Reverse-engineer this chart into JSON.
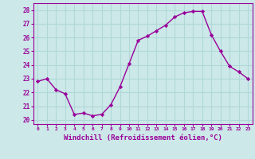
{
  "x": [
    0,
    1,
    2,
    3,
    4,
    5,
    6,
    7,
    8,
    9,
    10,
    11,
    12,
    13,
    14,
    15,
    16,
    17,
    18,
    19,
    20,
    21,
    22,
    23
  ],
  "y": [
    22.8,
    23.0,
    22.2,
    21.9,
    20.4,
    20.5,
    20.3,
    20.4,
    21.1,
    22.4,
    24.1,
    25.8,
    26.1,
    26.5,
    26.9,
    27.5,
    27.8,
    27.9,
    27.9,
    26.2,
    25.0,
    23.9,
    23.5,
    23.0
  ],
  "line_color": "#990099",
  "marker": "D",
  "marker_size": 2.2,
  "linewidth": 1.0,
  "xlabel": "Windchill (Refroidissement éolien,°C)",
  "xlabel_fontsize": 6.5,
  "xtick_labels": [
    "0",
    "1",
    "2",
    "3",
    "4",
    "5",
    "6",
    "7",
    "8",
    "9",
    "10",
    "11",
    "12",
    "13",
    "14",
    "15",
    "16",
    "17",
    "18",
    "19",
    "20",
    "21",
    "22",
    "23"
  ],
  "ytick_values": [
    20,
    21,
    22,
    23,
    24,
    25,
    26,
    27,
    28
  ],
  "ylim": [
    19.7,
    28.5
  ],
  "xlim": [
    -0.5,
    23.5
  ],
  "bg_color": "#cce8e8",
  "grid_color": "#b0d8d8",
  "tick_color": "#990099",
  "label_color": "#990099",
  "spine_color": "#990099"
}
